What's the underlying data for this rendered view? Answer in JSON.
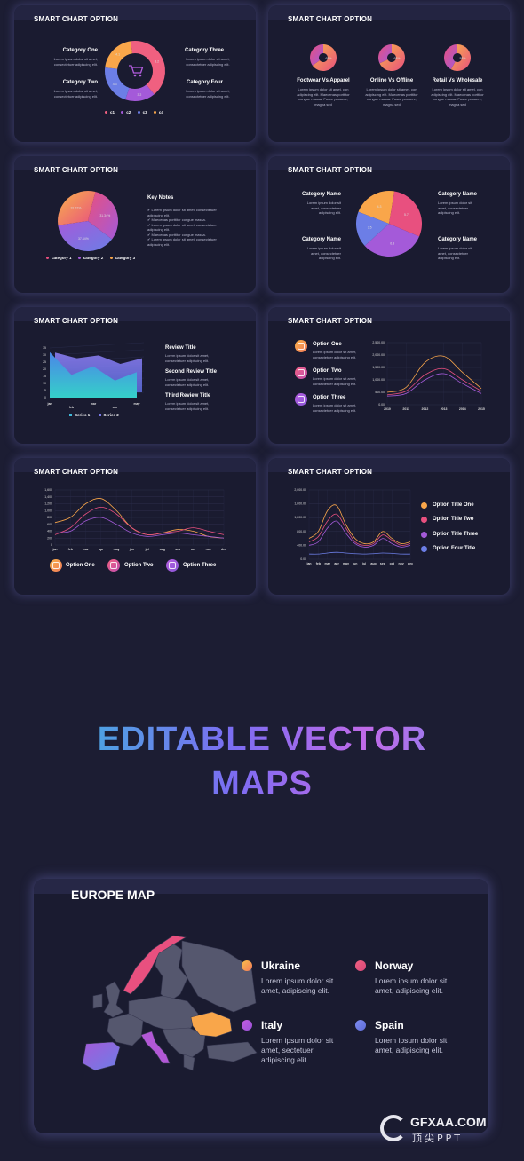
{
  "panel_title": "SMART CHART OPTION",
  "lorem_short": "Lorem ipsum dolor sit amet, consectetuer adipiscing elit.",
  "lorem_long": "Lorem ipsum dolor sit amet, con adipiscing elit. Maecenas porttitor congue massa. Fusce posuere, magna sed",
  "colors": {
    "orange": "#f9a64a",
    "pink": "#e8507f",
    "purple": "#a45ad9",
    "blue": "#6c7ee6",
    "bg": "#1a1b30",
    "page": "#1c1d33"
  },
  "p1": {
    "cat1": "Category One",
    "cat2": "Category Two",
    "cat3": "Category Three",
    "cat4": "Category Four",
    "icon": "shopping-cart-icon",
    "legend": [
      "c1",
      "c2",
      "c3",
      "c4"
    ],
    "chart_data": {
      "type": "pie",
      "donut": true,
      "slices": [
        {
          "label": "c1",
          "value": 8.2,
          "color": "#f06080"
        },
        {
          "label": "c2",
          "value": 3.2,
          "color": "#a45ad9"
        },
        {
          "label": "c3",
          "value": 4.3,
          "color": "#6c7ee6"
        },
        {
          "label": "c4",
          "value": 4.1,
          "color": "#f9a64a"
        }
      ]
    }
  },
  "p2": {
    "items": [
      {
        "title": "Footwear Vs Apparel",
        "value": "65%"
      },
      {
        "title": "Online Vs Offline",
        "value": "68%"
      },
      {
        "title": "Retail Vs Wholesale",
        "value": "58%"
      }
    ],
    "chart_data": [
      {
        "type": "pie",
        "donut": true,
        "values": [
          65,
          35
        ]
      },
      {
        "type": "pie",
        "donut": true,
        "values": [
          68,
          32
        ]
      },
      {
        "type": "pie",
        "donut": true,
        "values": [
          58,
          42
        ]
      }
    ]
  },
  "p3": {
    "notes_title": "Key Notes",
    "notes": [
      "Lorem ipsum dolor sit amet, consectetuer adipiscing elit.",
      "Maecenas porttitor congue massa.",
      "Lorem ipsum dolor sit amet, consectetuer adipiscing elit.",
      "Maecenas porttitor congue massa.",
      "Lorem ipsum dolor sit amet, consectetuer adipiscing elit."
    ],
    "legend": [
      "category 1",
      "category 2",
      "category 3"
    ],
    "chart_data": {
      "type": "pie",
      "slices": [
        {
          "label": "category 1",
          "value": "31.34%"
        },
        {
          "label": "category 2",
          "value": "37.44%"
        },
        {
          "label": "category 3",
          "value": "31.22%"
        }
      ]
    }
  },
  "p4": {
    "labels": [
      "Category Name",
      "Category Name",
      "Category Name",
      "Category Name"
    ],
    "chart_data": {
      "type": "pie",
      "slices": [
        {
          "label": "a",
          "value": 4.3,
          "color": "#f9a64a"
        },
        {
          "label": "b",
          "value": 5.7,
          "color": "#e8507f"
        },
        {
          "label": "c",
          "value": 6.3,
          "color": "#a45ad9"
        },
        {
          "label": "d",
          "value": 3.5,
          "color": "#6c7ee6"
        }
      ]
    }
  },
  "p5": {
    "titles": [
      "Review Title",
      "Second Review Title",
      "Third Review Title"
    ],
    "legend": [
      "Series 1",
      "Series 2"
    ],
    "yticks": [
      "35",
      "30",
      "25",
      "20",
      "15",
      "10",
      "5",
      "0"
    ],
    "chart_data": {
      "type": "area",
      "categories": [
        "jan",
        "feb",
        "mar",
        "apr",
        "may"
      ],
      "ylim": [
        0,
        35
      ],
      "series": [
        {
          "name": "Series 1",
          "values": [
            32,
            16,
            22,
            12,
            18
          ]
        },
        {
          "name": "Series 2",
          "values": [
            28,
            24,
            26,
            20,
            24
          ]
        }
      ]
    }
  },
  "p6": {
    "options": [
      "Option One",
      "Option Two",
      "Option Three"
    ],
    "yticks": [
      "2,500.00",
      "2,000.00",
      "1,500.00",
      "1,000.00",
      "500.00",
      "0.00"
    ],
    "chart_data": {
      "type": "line",
      "x": [
        "2010",
        "2011",
        "2012",
        "2013",
        "2014",
        "2015"
      ],
      "ylim": [
        0,
        2500
      ],
      "series": [
        {
          "values": [
            500,
            700,
            1700,
            1950,
            1300,
            650
          ]
        },
        {
          "values": [
            400,
            550,
            1200,
            1450,
            1000,
            550
          ]
        },
        {
          "values": [
            350,
            450,
            1000,
            1250,
            850,
            450
          ]
        }
      ]
    }
  },
  "p7": {
    "options": [
      "Option One",
      "Option Two",
      "Option Three"
    ],
    "yticks": [
      "1,600",
      "1,400",
      "1,200",
      "1,000",
      "800",
      "600",
      "400",
      "200",
      "0"
    ],
    "chart_data": {
      "type": "line",
      "x": [
        "jan",
        "feb",
        "mar",
        "apr",
        "may",
        "jun",
        "jul",
        "aug",
        "sep",
        "oct",
        "nov",
        "dec"
      ],
      "ylim": [
        0,
        1600
      ],
      "series": [
        {
          "values": [
            650,
            800,
            1200,
            1350,
            1000,
            500,
            300,
            350,
            450,
            400,
            250,
            200
          ]
        },
        {
          "values": [
            300,
            500,
            900,
            1100,
            900,
            500,
            300,
            350,
            400,
            500,
            400,
            300
          ]
        },
        {
          "values": [
            350,
            400,
            700,
            800,
            600,
            350,
            250,
            300,
            350,
            300,
            250,
            200
          ]
        }
      ]
    }
  },
  "p8": {
    "options": [
      "Option Title One",
      "Option Title Two",
      "Option Title Three",
      "Option Four Title"
    ],
    "yticks": [
      "2,000.00",
      "1,600.00",
      "1,200.00",
      "800.00",
      "400.00",
      "0.00"
    ],
    "chart_data": {
      "type": "line",
      "x": [
        "jan",
        "feb",
        "mar",
        "apr",
        "may",
        "jun",
        "jul",
        "aug",
        "sep",
        "oct",
        "nov",
        "dec"
      ],
      "ylim": [
        0,
        2000
      ],
      "series": [
        {
          "name": "Option Title One",
          "values": [
            600,
            800,
            1400,
            1550,
            1000,
            600,
            450,
            500,
            800,
            600,
            450,
            500
          ]
        },
        {
          "name": "Option Title Two",
          "values": [
            500,
            650,
            1100,
            1300,
            900,
            500,
            400,
            450,
            700,
            550,
            400,
            450
          ]
        },
        {
          "name": "Option Title Three",
          "values": [
            400,
            500,
            900,
            1100,
            750,
            450,
            350,
            400,
            600,
            450,
            350,
            400
          ]
        },
        {
          "name": "Option Four Title",
          "values": [
            150,
            150,
            180,
            200,
            180,
            160,
            150,
            160,
            180,
            170,
            150,
            150
          ]
        }
      ]
    }
  },
  "headline_line1": "EDITABLE VECTOR",
  "headline_line2": "MAPS",
  "map": {
    "title": "EUROPE MAP",
    "countries": [
      {
        "name": "Ukraine",
        "desc": "Lorem ipsum dolor sit amet, adipiscing elit.",
        "color": "#f9a64a"
      },
      {
        "name": "Norway",
        "desc": "Lorem ipsum dolor sit amet, adipiscing elit.",
        "color": "#e8507f"
      },
      {
        "name": "Italy",
        "desc": "Lorem ipsum dolor sit amet, sectetuer adipiscing elit.",
        "color": "#b258d6"
      },
      {
        "name": "Spain",
        "desc": "Lorem ipsum dolor sit amet, adipiscing elit.",
        "color": "#6c7ee6"
      }
    ]
  },
  "watermark": {
    "brand": "GFXAA.COM",
    "sub": "顶尖PPT"
  }
}
